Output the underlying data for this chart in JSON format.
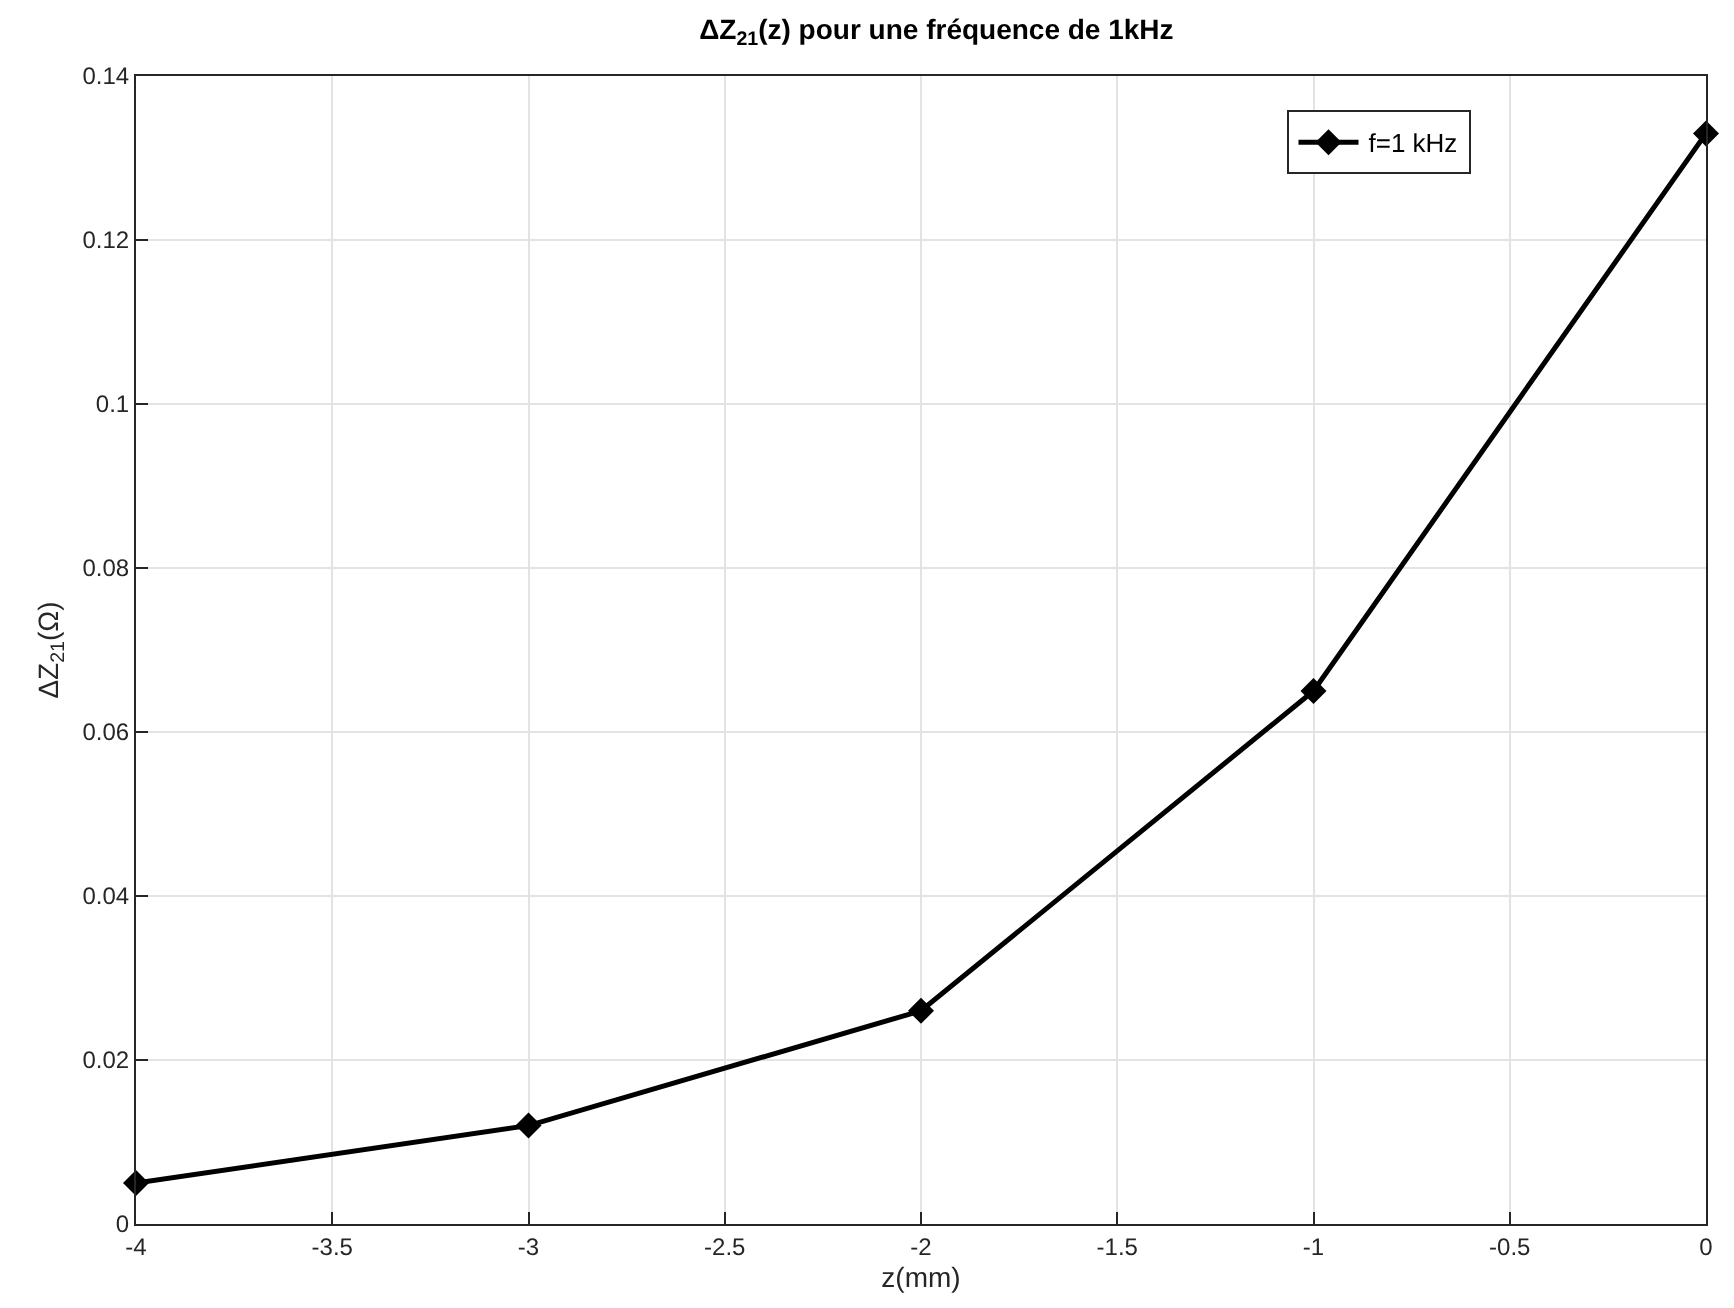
{
  "chart_data": {
    "type": "line",
    "title": "ΔZ$_{21}$(z) pour une fréquence de 1kHz",
    "xlabel": "z(mm)",
    "ylabel": "ΔZ$_{21}$(Ω)",
    "x": [
      -4,
      -3,
      -2,
      -1,
      0
    ],
    "series": [
      {
        "name": "f=1 kHz",
        "color": "#000000",
        "values": [
          0.005,
          0.012,
          0.026,
          0.065,
          0.133
        ]
      }
    ],
    "xlim": [
      -4,
      0
    ],
    "xticks": [
      -4,
      -3.5,
      -3,
      -2.5,
      -2,
      -1.5,
      -1,
      -0.5,
      0
    ],
    "ylim": [
      0,
      0.14
    ],
    "yticks": [
      0,
      0.02,
      0.04,
      0.06,
      0.08,
      0.1,
      0.12,
      0.14
    ],
    "grid": true,
    "legend": "top right",
    "marker": "diamond",
    "line_style": "solid"
  }
}
